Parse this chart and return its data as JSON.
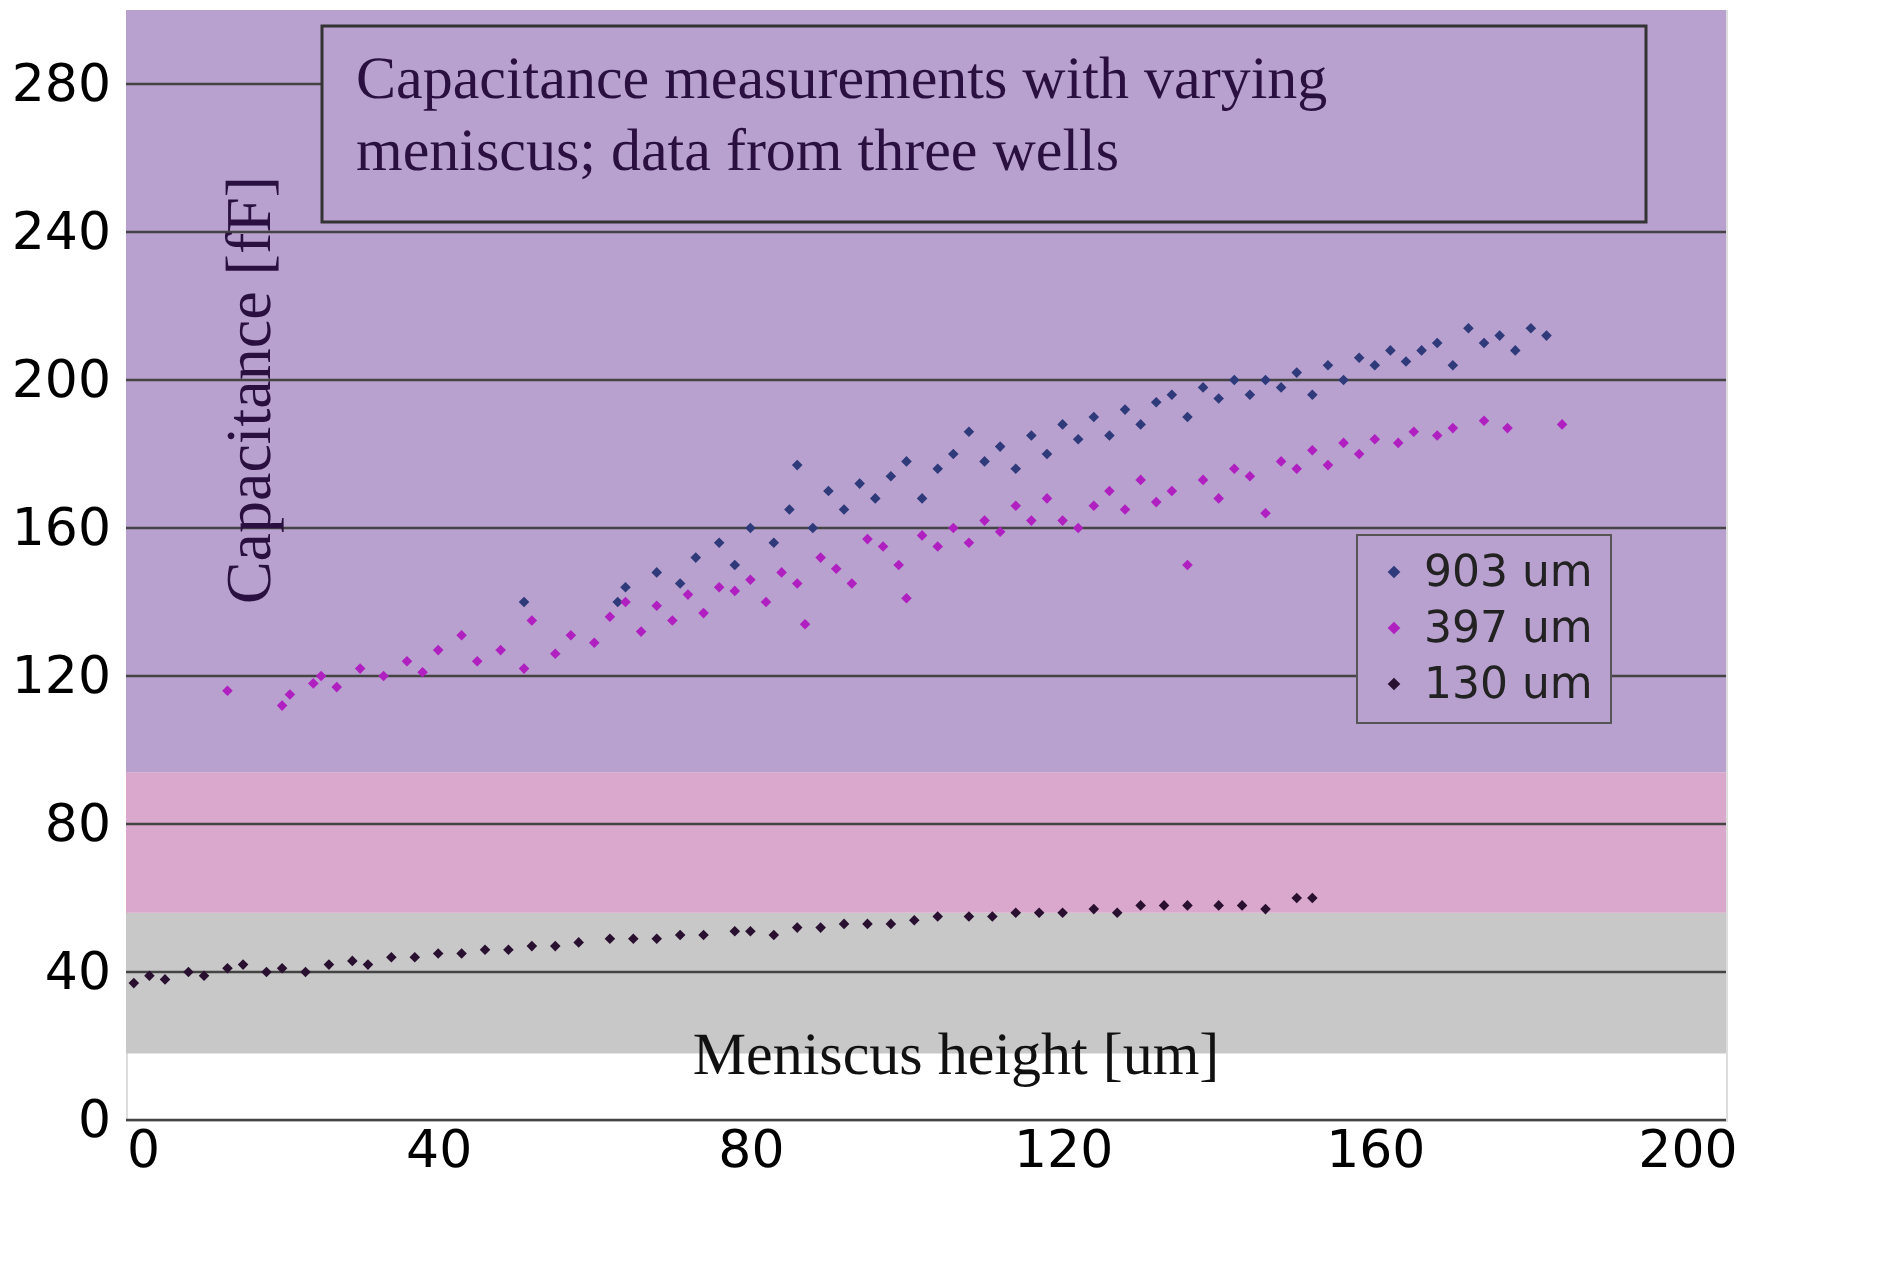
{
  "chart_data": {
    "type": "scatter",
    "title": "Capacitance measurements with varying meniscus; data from three wells",
    "xlabel": "Meniscus height [um]",
    "ylabel": "Capacitance [fF]",
    "xlim": [
      0,
      205
    ],
    "xticks": [
      0,
      40,
      80,
      120,
      160,
      200
    ],
    "ylim": [
      0,
      300
    ],
    "yticks": [
      0,
      40,
      80,
      120,
      160,
      200,
      240,
      280
    ],
    "grid": "y",
    "legend": "right",
    "marker": "diamond",
    "bands": [
      {
        "axis": "y",
        "from": 18,
        "to": 56,
        "color": "#c8c8c8"
      },
      {
        "axis": "y",
        "from": 56,
        "to": 94,
        "color": "#d9a8cc"
      },
      {
        "axis": "y",
        "from": 94,
        "to": 300,
        "color": "#b8a0cf"
      }
    ],
    "series": [
      {
        "name": "903 um",
        "color": "#2e3a7a",
        "x": [
          51,
          63,
          64,
          68,
          71,
          73,
          76,
          78,
          80,
          83,
          85,
          86,
          88,
          90,
          92,
          94,
          96,
          98,
          100,
          102,
          104,
          106,
          108,
          110,
          112,
          114,
          116,
          118,
          120,
          122,
          124,
          126,
          128,
          130,
          132,
          134,
          136,
          138,
          140,
          142,
          144,
          146,
          148,
          150,
          152,
          154,
          156,
          158,
          160,
          162,
          164,
          166,
          168,
          170,
          172,
          174,
          176,
          178,
          180,
          182
        ],
        "values": [
          140,
          140,
          144,
          148,
          145,
          152,
          156,
          150,
          160,
          156,
          165,
          177,
          160,
          170,
          165,
          172,
          168,
          174,
          178,
          168,
          176,
          180,
          186,
          178,
          182,
          176,
          185,
          180,
          188,
          184,
          190,
          185,
          192,
          188,
          194,
          196,
          190,
          198,
          195,
          200,
          196,
          200,
          198,
          202,
          196,
          204,
          200,
          206,
          204,
          208,
          205,
          208,
          210,
          204,
          214,
          210,
          212,
          208,
          214,
          212
        ]
      },
      {
        "name": "397 um",
        "color": "#b020c0",
        "x": [
          13,
          20,
          21,
          24,
          25,
          27,
          30,
          33,
          36,
          38,
          40,
          43,
          45,
          48,
          51,
          52,
          55,
          57,
          60,
          62,
          64,
          66,
          68,
          70,
          72,
          74,
          76,
          78,
          80,
          82,
          84,
          86,
          87,
          89,
          91,
          93,
          95,
          97,
          99,
          100,
          102,
          104,
          106,
          108,
          110,
          112,
          114,
          116,
          118,
          120,
          122,
          124,
          126,
          128,
          130,
          132,
          134,
          136,
          138,
          140,
          142,
          144,
          146,
          148,
          150,
          152,
          154,
          156,
          158,
          160,
          163,
          165,
          168,
          170,
          174,
          177,
          184
        ],
        "values": [
          116,
          112,
          115,
          118,
          120,
          117,
          122,
          120,
          124,
          121,
          127,
          131,
          124,
          127,
          122,
          135,
          126,
          131,
          129,
          136,
          140,
          132,
          139,
          135,
          142,
          137,
          144,
          143,
          146,
          140,
          148,
          145,
          134,
          152,
          149,
          145,
          157,
          155,
          150,
          141,
          158,
          155,
          160,
          156,
          162,
          159,
          166,
          162,
          168,
          162,
          160,
          166,
          170,
          165,
          173,
          167,
          170,
          150,
          173,
          168,
          176,
          174,
          164,
          178,
          176,
          181,
          177,
          183,
          180,
          184,
          183,
          186,
          185,
          187,
          189,
          187,
          188
        ]
      },
      {
        "name": "130 um",
        "color": "#2a1030",
        "x": [
          1,
          3,
          5,
          8,
          10,
          13,
          15,
          18,
          20,
          23,
          26,
          29,
          31,
          34,
          37,
          40,
          43,
          46,
          49,
          52,
          55,
          58,
          62,
          65,
          68,
          71,
          74,
          78,
          80,
          83,
          86,
          89,
          92,
          95,
          98,
          101,
          104,
          108,
          111,
          114,
          117,
          120,
          124,
          127,
          130,
          133,
          136,
          140,
          143,
          146,
          150,
          152
        ],
        "values": [
          37,
          39,
          38,
          40,
          39,
          41,
          42,
          40,
          41,
          40,
          42,
          43,
          42,
          44,
          44,
          45,
          45,
          46,
          46,
          47,
          47,
          48,
          49,
          49,
          49,
          50,
          50,
          51,
          51,
          50,
          52,
          52,
          53,
          53,
          53,
          54,
          55,
          55,
          55,
          56,
          56,
          56,
          57,
          56,
          58,
          58,
          58,
          58,
          58,
          57,
          60,
          60
        ]
      }
    ]
  }
}
